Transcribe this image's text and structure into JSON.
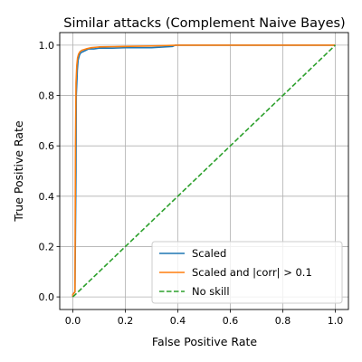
{
  "chart_data": {
    "type": "line",
    "title": "Similar attacks (Complement Naive Bayes)",
    "xlabel": "False Positive Rate",
    "ylabel": "True Positive Rate",
    "xlim": [
      -0.05,
      1.05
    ],
    "ylim": [
      -0.05,
      1.05
    ],
    "xticks": [
      0.0,
      0.2,
      0.4,
      0.6,
      0.8,
      1.0
    ],
    "yticks": [
      0.0,
      0.2,
      0.4,
      0.6,
      0.8,
      1.0
    ],
    "xtick_labels": [
      "0.0",
      "0.2",
      "0.4",
      "0.6",
      "0.8",
      "1.0"
    ],
    "ytick_labels": [
      "0.0",
      "0.2",
      "0.4",
      "0.6",
      "0.8",
      "1.0"
    ],
    "grid": true,
    "legend_position": "lower-right",
    "series": [
      {
        "name": "Scaled",
        "color": "#1f77b4",
        "style": "solid",
        "x": [
          0.0,
          0.0,
          0.008,
          0.012,
          0.013,
          0.016,
          0.017,
          0.02,
          0.025,
          0.03,
          0.04,
          0.05,
          0.06,
          0.08,
          0.1,
          0.15,
          0.2,
          0.3,
          0.38,
          0.39,
          0.5,
          0.7,
          1.0
        ],
        "y": [
          0.0,
          0.01,
          0.02,
          0.5,
          0.8,
          0.87,
          0.9,
          0.94,
          0.96,
          0.97,
          0.975,
          0.98,
          0.985,
          0.985,
          0.988,
          0.988,
          0.99,
          0.99,
          0.995,
          1.0,
          1.0,
          1.0,
          1.0
        ]
      },
      {
        "name": "Scaled and |corr| > 0.1",
        "color": "#ff7f0e",
        "style": "solid",
        "x": [
          0.0,
          0.0,
          0.008,
          0.01,
          0.012,
          0.015,
          0.018,
          0.022,
          0.028,
          0.035,
          0.05,
          0.07,
          0.1,
          0.2,
          0.3,
          0.4,
          0.6,
          0.8,
          1.0
        ],
        "y": [
          0.0,
          0.01,
          0.02,
          0.6,
          0.85,
          0.92,
          0.95,
          0.965,
          0.975,
          0.98,
          0.985,
          0.99,
          0.993,
          0.995,
          0.997,
          1.0,
          1.0,
          1.0,
          1.0
        ]
      },
      {
        "name": "No skill",
        "color": "#2ca02c",
        "style": "dashed",
        "x": [
          0.0,
          1.0
        ],
        "y": [
          0.0,
          1.0
        ]
      }
    ]
  }
}
